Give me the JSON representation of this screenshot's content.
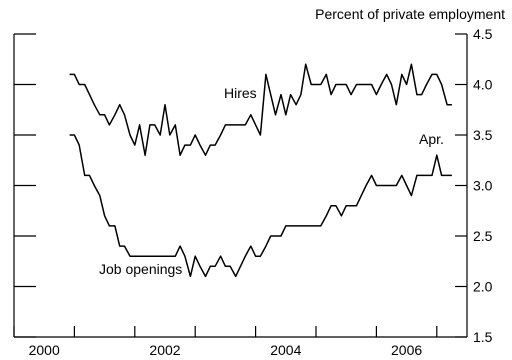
{
  "chart_data": {
    "type": "line",
    "ylabel": "Percent of private employment",
    "ylim": [
      1.5,
      4.5
    ],
    "y_ticks": [
      1.5,
      2.0,
      2.5,
      3.0,
      3.5,
      4.0,
      4.5
    ],
    "y_tick_labels": [
      "1.5",
      "2.0",
      "2.5",
      "3.0",
      "3.5",
      "4.0",
      "4.5"
    ],
    "xlim": [
      2000.0,
      2007.5
    ],
    "x_tick_labels": [
      "2000",
      "2002",
      "2004",
      "2006"
    ],
    "grid": false,
    "annotation": "Apr.",
    "series": [
      {
        "name": "Hires",
        "x": [
          2000.92,
          2001.0,
          2001.08,
          2001.17,
          2001.25,
          2001.33,
          2001.42,
          2001.5,
          2001.58,
          2001.67,
          2001.75,
          2001.83,
          2001.92,
          2002.0,
          2002.08,
          2002.17,
          2002.25,
          2002.33,
          2002.42,
          2002.5,
          2002.58,
          2002.67,
          2002.75,
          2002.83,
          2002.92,
          2003.0,
          2003.08,
          2003.17,
          2003.25,
          2003.33,
          2003.42,
          2003.5,
          2003.58,
          2003.67,
          2003.75,
          2003.83,
          2003.92,
          2004.0,
          2004.08,
          2004.17,
          2004.25,
          2004.33,
          2004.42,
          2004.5,
          2004.58,
          2004.67,
          2004.75,
          2004.83,
          2004.92,
          2005.0,
          2005.08,
          2005.17,
          2005.25,
          2005.33,
          2005.42,
          2005.5,
          2005.58,
          2005.67,
          2005.75,
          2005.83,
          2005.92,
          2006.0,
          2006.08,
          2006.17,
          2006.25,
          2006.33,
          2006.42,
          2006.5,
          2006.58,
          2006.67,
          2006.75,
          2006.83,
          2006.92,
          2007.0,
          2007.08,
          2007.17,
          2007.25
        ],
        "values": [
          4.1,
          4.1,
          4.0,
          4.0,
          3.9,
          3.8,
          3.7,
          3.7,
          3.6,
          3.7,
          3.8,
          3.7,
          3.5,
          3.4,
          3.6,
          3.3,
          3.6,
          3.6,
          3.5,
          3.8,
          3.5,
          3.6,
          3.3,
          3.4,
          3.4,
          3.5,
          3.4,
          3.3,
          3.4,
          3.4,
          3.5,
          3.6,
          3.6,
          3.6,
          3.6,
          3.6,
          3.7,
          3.6,
          3.5,
          4.1,
          3.9,
          3.7,
          3.9,
          3.7,
          3.9,
          3.8,
          3.9,
          4.2,
          4.0,
          4.0,
          4.0,
          4.1,
          3.9,
          4.0,
          4.0,
          4.0,
          3.9,
          4.0,
          4.0,
          4.0,
          4.0,
          3.9,
          4.0,
          4.1,
          4.0,
          3.8,
          4.1,
          4.0,
          4.2,
          3.9,
          3.9,
          4.0,
          4.1,
          4.1,
          4.0,
          3.8,
          3.8
        ]
      },
      {
        "name": "Job openings",
        "x": [
          2000.92,
          2001.0,
          2001.08,
          2001.17,
          2001.25,
          2001.33,
          2001.42,
          2001.5,
          2001.58,
          2001.67,
          2001.75,
          2001.83,
          2001.92,
          2002.0,
          2002.08,
          2002.17,
          2002.25,
          2002.33,
          2002.42,
          2002.5,
          2002.58,
          2002.67,
          2002.75,
          2002.83,
          2002.92,
          2003.0,
          2003.08,
          2003.17,
          2003.25,
          2003.33,
          2003.42,
          2003.5,
          2003.58,
          2003.67,
          2003.75,
          2003.83,
          2003.92,
          2004.0,
          2004.08,
          2004.17,
          2004.25,
          2004.33,
          2004.42,
          2004.5,
          2004.58,
          2004.67,
          2004.75,
          2004.83,
          2004.92,
          2005.0,
          2005.08,
          2005.17,
          2005.25,
          2005.33,
          2005.42,
          2005.5,
          2005.58,
          2005.67,
          2005.75,
          2005.83,
          2005.92,
          2006.0,
          2006.08,
          2006.17,
          2006.25,
          2006.33,
          2006.42,
          2006.5,
          2006.58,
          2006.67,
          2006.75,
          2006.83,
          2006.92,
          2007.0,
          2007.08,
          2007.17,
          2007.25
        ],
        "values": [
          3.5,
          3.5,
          3.4,
          3.1,
          3.1,
          3.0,
          2.9,
          2.7,
          2.6,
          2.6,
          2.4,
          2.4,
          2.3,
          2.3,
          2.3,
          2.3,
          2.3,
          2.3,
          2.3,
          2.3,
          2.3,
          2.3,
          2.4,
          2.3,
          2.1,
          2.3,
          2.2,
          2.1,
          2.2,
          2.2,
          2.3,
          2.2,
          2.2,
          2.1,
          2.2,
          2.3,
          2.4,
          2.3,
          2.3,
          2.4,
          2.5,
          2.5,
          2.5,
          2.6,
          2.6,
          2.6,
          2.6,
          2.6,
          2.6,
          2.6,
          2.6,
          2.7,
          2.8,
          2.8,
          2.7,
          2.8,
          2.8,
          2.8,
          2.9,
          3.0,
          3.1,
          3.0,
          3.0,
          3.0,
          3.0,
          3.0,
          3.1,
          3.0,
          2.9,
          3.1,
          3.1,
          3.1,
          3.1,
          3.3,
          3.1,
          3.1,
          3.1
        ]
      }
    ]
  }
}
